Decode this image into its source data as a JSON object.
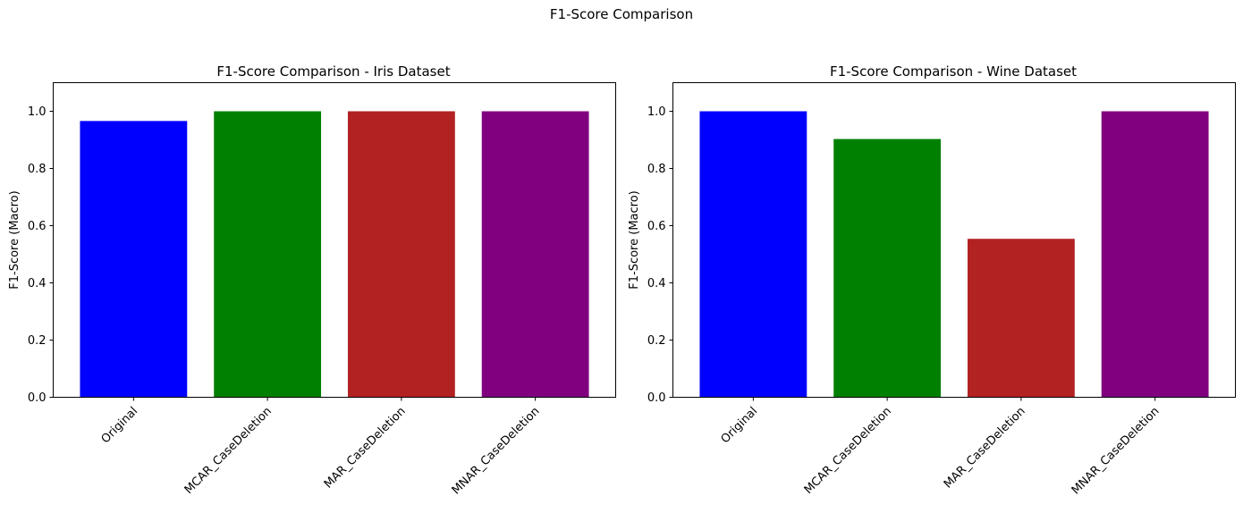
{
  "figure": {
    "suptitle": "F1-Score Comparison"
  },
  "chart_data": [
    {
      "type": "bar",
      "title": "F1-Score Comparison - Iris Dataset",
      "xlabel": "",
      "ylabel": "F1-Score (Macro)",
      "categories": [
        "Original",
        "MCAR_CaseDeletion",
        "MAR_CaseDeletion",
        "MNAR_CaseDeletion"
      ],
      "values": [
        0.966,
        1.0,
        1.0,
        1.0
      ],
      "colors": [
        "#0000ff",
        "#008000",
        "#b22222",
        "#800080"
      ],
      "ylim": [
        0,
        1.1
      ],
      "yticks": [
        "0.0",
        "0.2",
        "0.4",
        "0.6",
        "0.8",
        "1.0"
      ],
      "ytick_values": [
        0,
        0.2,
        0.4,
        0.6,
        0.8,
        1.0
      ],
      "grid": false,
      "legend": "none"
    },
    {
      "type": "bar",
      "title": "F1-Score Comparison - Wine Dataset",
      "xlabel": "",
      "ylabel": "F1-Score (Macro)",
      "categories": [
        "Original",
        "MCAR_CaseDeletion",
        "MAR_CaseDeletion",
        "MNAR_CaseDeletion"
      ],
      "values": [
        1.0,
        0.903,
        0.554,
        1.0
      ],
      "colors": [
        "#0000ff",
        "#008000",
        "#b22222",
        "#800080"
      ],
      "ylim": [
        0,
        1.1
      ],
      "yticks": [
        "0.0",
        "0.2",
        "0.4",
        "0.6",
        "0.8",
        "1.0"
      ],
      "ytick_values": [
        0,
        0.2,
        0.4,
        0.6,
        0.8,
        1.0
      ],
      "grid": false,
      "legend": "none"
    }
  ]
}
